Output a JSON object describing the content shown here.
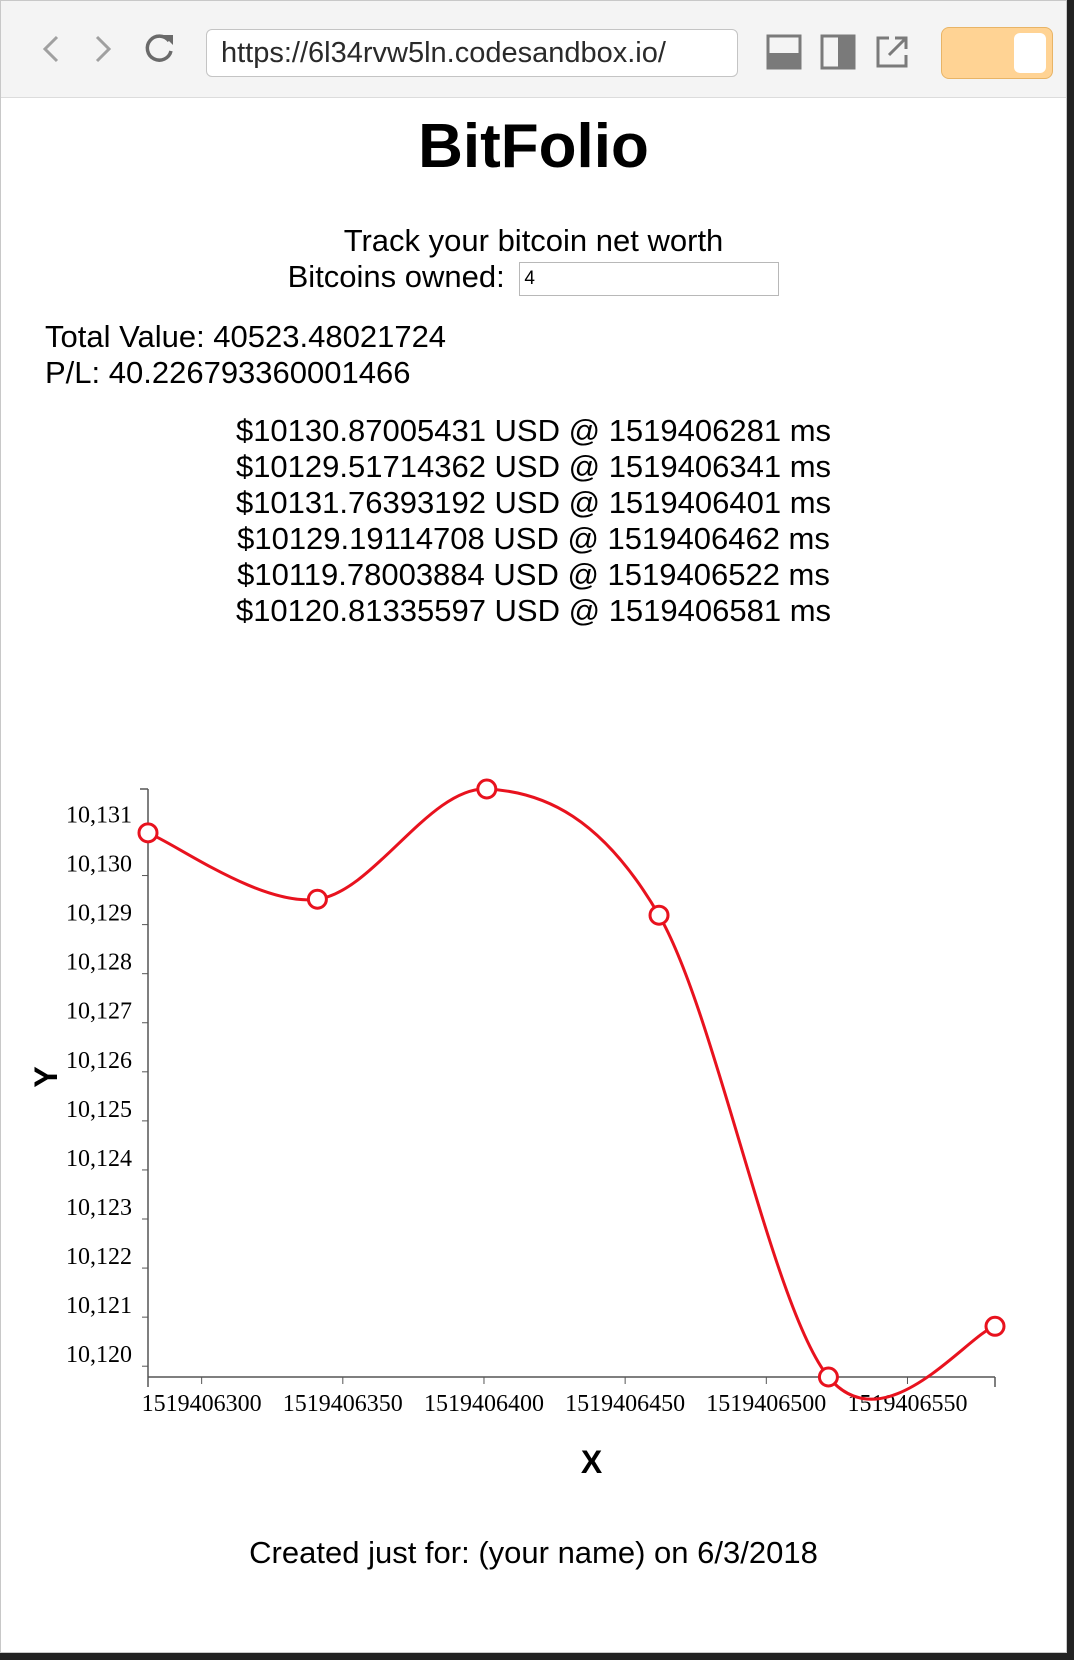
{
  "browser": {
    "url": "https://6l34rvw5ln.codesandbox.io/",
    "back_icon": "chevron-left-icon",
    "forward_icon": "chevron-right-icon",
    "reload_icon": "reload-icon"
  },
  "app": {
    "title": "BitFolio",
    "tagline": "Track your bitcoin net worth",
    "owned_label": "Bitcoins owned:",
    "owned_value": "4",
    "total_value": "Total Value: 40523.48021724",
    "pl": "P/L: 40.226793360001466",
    "prices": [
      "$10130.87005431 USD @ 1519406281 ms",
      "$10129.51714362 USD @ 1519406341 ms",
      "$10131.76393192 USD @ 1519406401 ms",
      "$10129.19114708 USD @ 1519406462 ms",
      "$10119.78003884 USD @ 1519406522 ms",
      "$10120.81335597 USD @ 1519406581 ms"
    ],
    "footer": "Created just for: (your name) on 6/3/2018"
  },
  "chart_data": {
    "type": "line",
    "x": [
      1519406281,
      1519406341,
      1519406401,
      1519406462,
      1519406522,
      1519406581
    ],
    "y": [
      10130.87005431,
      10129.51714362,
      10131.76393192,
      10129.19114708,
      10119.78003884,
      10120.81335597
    ],
    "xlabel": "X",
    "ylabel": "Y",
    "xlim": [
      1519406281,
      1519406581
    ],
    "ylim": [
      10119.78003884,
      10131.76393192
    ],
    "x_ticks": [
      "1519406300",
      "1519406350",
      "1519406400",
      "1519406450",
      "1519406500",
      "1519406550"
    ],
    "y_ticks": [
      "10,120",
      "10,121",
      "10,122",
      "10,123",
      "10,124",
      "10,125",
      "10,126",
      "10,127",
      "10,128",
      "10,129",
      "10,130",
      "10,131"
    ],
    "line_color": "#e8121e",
    "grid": false,
    "markers": "open-circle"
  }
}
